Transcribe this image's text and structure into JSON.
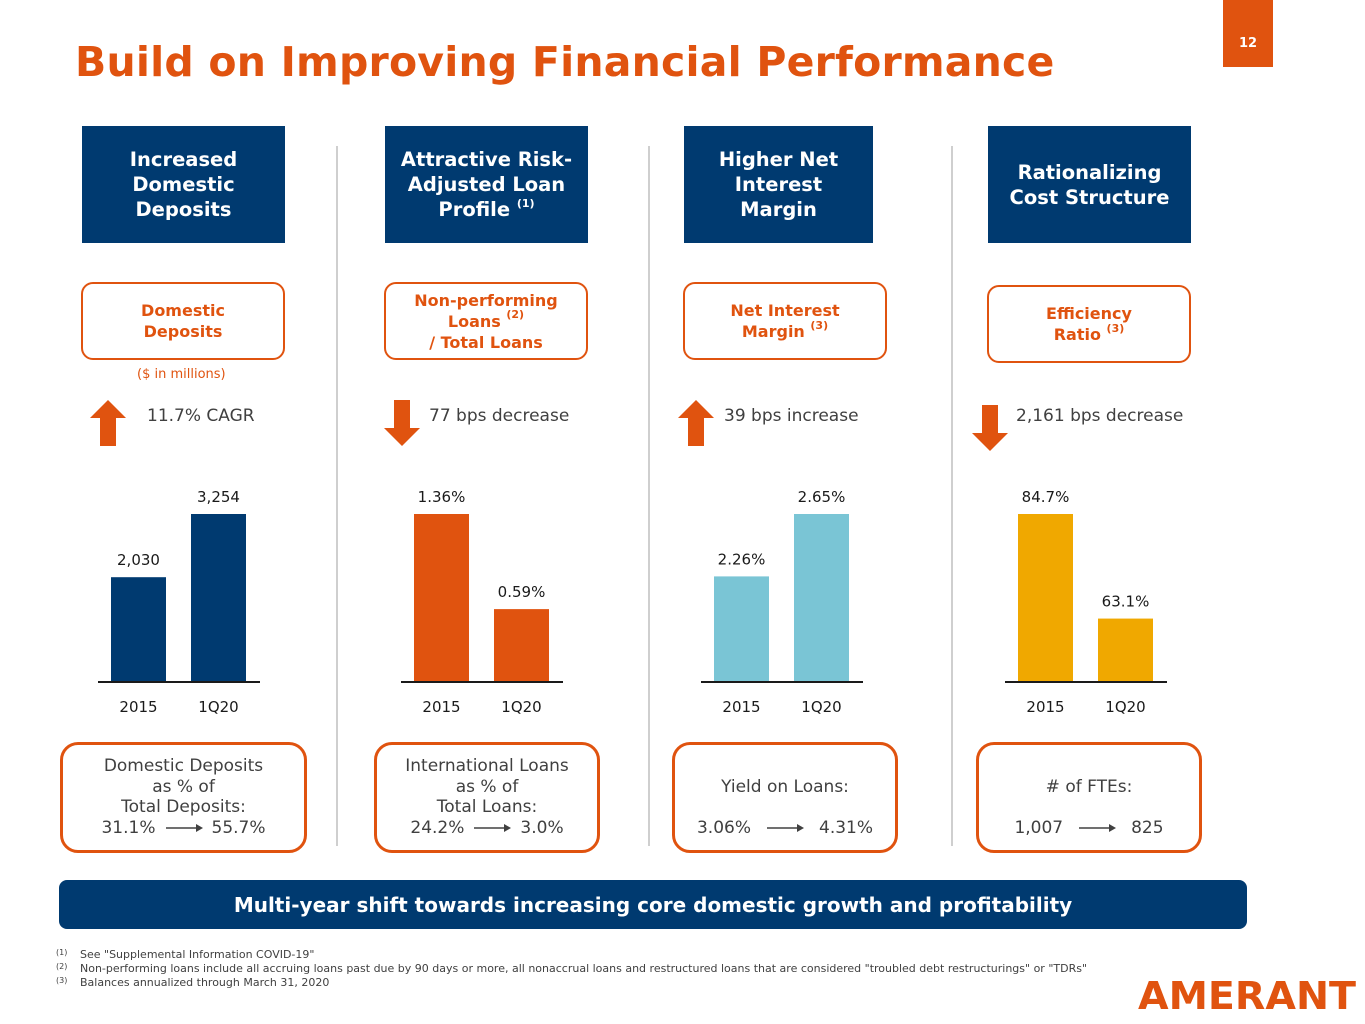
{
  "title": "Build on Improving Financial Performance",
  "page_number": "12",
  "colors": {
    "brand_orange": "#E0530F",
    "navy": "#003A70",
    "teal": "#7AC5D5",
    "gold": "#F0A800"
  },
  "columns": [
    {
      "header_lines": [
        "Increased",
        "Domestic",
        "Deposits"
      ],
      "header_footnote": "",
      "metric_lines": [
        "Domestic",
        "Deposits"
      ],
      "metric_footnote": "",
      "unit_note": "($ in millions)",
      "direction": "up",
      "direction_icon": "arrow-up-icon",
      "change_text": "11.7% CAGR",
      "stat_lines": [
        "Domestic Deposits",
        "as % of",
        "Total Deposits:"
      ],
      "stat_from": "31.1%",
      "stat_to": "55.7%"
    },
    {
      "header_lines": [
        "Attractive Risk-",
        "Adjusted Loan",
        "Profile"
      ],
      "header_footnote": "(1)",
      "metric_lines": [
        "Non-performing",
        "Loans",
        "/ Total Loans"
      ],
      "metric_footnote": "(2)",
      "unit_note": "",
      "direction": "down",
      "direction_icon": "arrow-down-icon",
      "change_text": "77 bps decrease",
      "stat_lines": [
        "International Loans",
        "as % of",
        "Total Loans:"
      ],
      "stat_from": "24.2%",
      "stat_to": "3.0%"
    },
    {
      "header_lines": [
        "Higher Net",
        "Interest",
        "Margin"
      ],
      "header_footnote": "",
      "metric_lines": [
        "Net Interest",
        "Margin"
      ],
      "metric_footnote": "(3)",
      "unit_note": "",
      "direction": "up",
      "direction_icon": "arrow-up-icon",
      "change_text": "39 bps increase",
      "stat_lines": [
        "Yield on Loans:"
      ],
      "stat_from": "3.06%",
      "stat_to": "4.31%"
    },
    {
      "header_lines": [
        "Rationalizing",
        "Cost Structure"
      ],
      "header_footnote": "",
      "metric_lines": [
        "Efficiency",
        "Ratio"
      ],
      "metric_footnote": "(3)",
      "unit_note": "",
      "direction": "down",
      "direction_icon": "arrow-down-icon",
      "change_text": "2,161 bps decrease",
      "stat_lines": [
        "# of FTEs:"
      ],
      "stat_from": "1,007",
      "stat_to": "825"
    }
  ],
  "chart_data": [
    {
      "type": "bar",
      "title": "Domestic Deposits",
      "ylabel": "$ in millions",
      "categories": [
        "2015",
        "1Q20"
      ],
      "values": [
        2030,
        3254
      ],
      "labels": [
        "2,030",
        "3,254"
      ],
      "color": "#003A70",
      "ylim": [
        0,
        3254
      ],
      "grid": false
    },
    {
      "type": "bar",
      "title": "Non-performing Loans / Total Loans",
      "ylabel": "%",
      "categories": [
        "2015",
        "1Q20"
      ],
      "values": [
        1.36,
        0.59
      ],
      "labels": [
        "1.36%",
        "0.59%"
      ],
      "color": "#E0530F",
      "ylim": [
        0,
        1.36
      ],
      "grid": false
    },
    {
      "type": "bar",
      "title": "Net Interest Margin",
      "ylabel": "%",
      "categories": [
        "2015",
        "1Q20"
      ],
      "values": [
        2.26,
        2.65
      ],
      "labels": [
        "2.26%",
        "2.65%"
      ],
      "color": "#7AC5D5",
      "ylim": [
        1.6,
        2.65
      ],
      "grid": false
    },
    {
      "type": "bar",
      "title": "Efficiency Ratio",
      "ylabel": "%",
      "categories": [
        "2015",
        "1Q20"
      ],
      "values": [
        84.7,
        63.1
      ],
      "labels": [
        "84.7%",
        "63.1%"
      ],
      "color": "#F0A800",
      "ylim": [
        50,
        84.7
      ],
      "grid": false
    }
  ],
  "banner": "Multi-year shift towards increasing core domestic growth and profitability",
  "footnotes": [
    {
      "marker": "(1)",
      "text": "See \"Supplemental Information COVID-19\""
    },
    {
      "marker": "(2)",
      "text": "Non-performing loans include all accruing loans past due by 90 days or more, all nonaccrual loans and restructured loans that are considered \"troubled debt restructurings\" or \"TDRs\""
    },
    {
      "marker": "(3)",
      "text": "Balances annualized through March 31, 2020"
    }
  ],
  "logo_text": "AMERANT"
}
